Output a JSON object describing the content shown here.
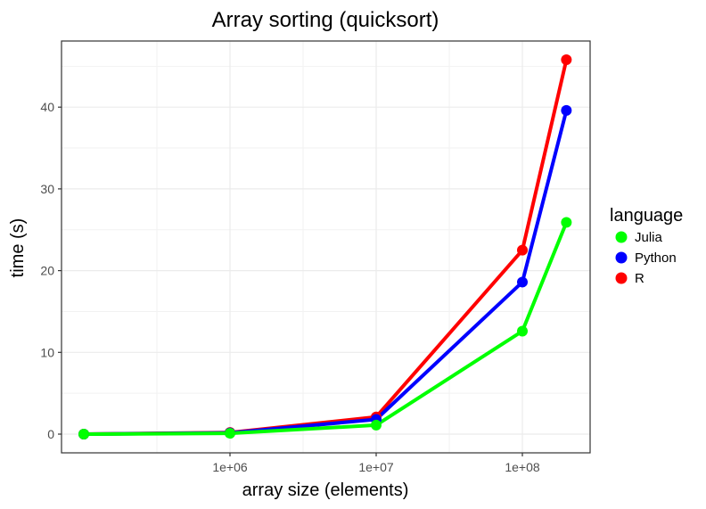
{
  "chart_data": {
    "type": "line",
    "title": "Array sorting (quicksort)",
    "xlabel": "array size (elements)",
    "ylabel": "time (s)",
    "x_scale": "log10",
    "x": [
      100000,
      1000000,
      10000000,
      100000000,
      200000000
    ],
    "xlim": [
      100000,
      200000000
    ],
    "x_ticks": [
      1000000,
      10000000,
      100000000
    ],
    "x_tick_labels": [
      "1e+06",
      "1e+07",
      "1e+08"
    ],
    "y_ticks": [
      0,
      10,
      20,
      30,
      40
    ],
    "y_tick_labels": [
      "0",
      "10",
      "20",
      "30",
      "40"
    ],
    "ylim": [
      0,
      46
    ],
    "grid": true,
    "legend": {
      "title": "language",
      "position": "right"
    },
    "series": [
      {
        "name": "R",
        "color": "#ff0000",
        "values": [
          0.0,
          0.2,
          2.1,
          22.5,
          45.8
        ]
      },
      {
        "name": "Python",
        "color": "#0000ff",
        "values": [
          0.0,
          0.15,
          1.8,
          18.6,
          39.6
        ]
      },
      {
        "name": "Julia",
        "color": "#00ff00",
        "values": [
          0.0,
          0.1,
          1.1,
          12.6,
          25.9
        ]
      }
    ],
    "legend_order": [
      "Julia",
      "Python",
      "R"
    ]
  }
}
